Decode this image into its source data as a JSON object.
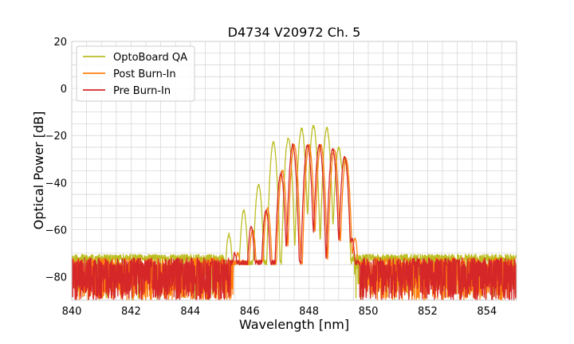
{
  "chart_data": {
    "type": "line",
    "title": "D4734 V20972 Ch. 5",
    "xlabel": "Wavelength [nm]",
    "ylabel": "Optical Power [dB]",
    "xlim": [
      840,
      855
    ],
    "ylim": [
      -90,
      20
    ],
    "xticks": [
      840,
      842,
      844,
      846,
      848,
      850,
      852,
      854
    ],
    "yticks": [
      20,
      0,
      -20,
      -40,
      -60,
      -80
    ],
    "ytick_labels": [
      "20",
      "0",
      "−20",
      "−40",
      "−60",
      "−80"
    ],
    "grid": true,
    "legend_position": "top-left",
    "series": [
      {
        "name": "OptoBoard QA",
        "color": "#bcbd22",
        "noise_floor": -72,
        "peaks": [
          {
            "x": 845.3,
            "y": -62
          },
          {
            "x": 845.8,
            "y": -52
          },
          {
            "x": 846.3,
            "y": -41
          },
          {
            "x": 846.8,
            "y": -23
          },
          {
            "x": 847.3,
            "y": -21
          },
          {
            "x": 847.75,
            "y": -17
          },
          {
            "x": 848.15,
            "y": -16
          },
          {
            "x": 848.6,
            "y": -17
          },
          {
            "x": 849.0,
            "y": -25
          },
          {
            "x": 849.2,
            "y": -30
          }
        ]
      },
      {
        "name": "Post Burn-In",
        "color": "#ff7f0e",
        "noise_floor": -80,
        "peaks": [
          {
            "x": 845.6,
            "y": -70
          },
          {
            "x": 846.1,
            "y": -60
          },
          {
            "x": 846.6,
            "y": -51
          },
          {
            "x": 847.1,
            "y": -35
          },
          {
            "x": 847.5,
            "y": -24
          },
          {
            "x": 848.0,
            "y": -24
          },
          {
            "x": 848.4,
            "y": -24
          },
          {
            "x": 848.85,
            "y": -26
          },
          {
            "x": 849.25,
            "y": -30
          },
          {
            "x": 849.55,
            "y": -64
          }
        ]
      },
      {
        "name": "Pre Burn-In",
        "color": "#d62728",
        "noise_floor": -80,
        "peaks": [
          {
            "x": 845.5,
            "y": -70
          },
          {
            "x": 846.05,
            "y": -59
          },
          {
            "x": 846.55,
            "y": -52
          },
          {
            "x": 847.05,
            "y": -36
          },
          {
            "x": 847.45,
            "y": -24
          },
          {
            "x": 847.95,
            "y": -24
          },
          {
            "x": 848.35,
            "y": -24
          },
          {
            "x": 848.8,
            "y": -26
          },
          {
            "x": 849.2,
            "y": -29
          },
          {
            "x": 849.45,
            "y": -64
          }
        ]
      }
    ]
  }
}
